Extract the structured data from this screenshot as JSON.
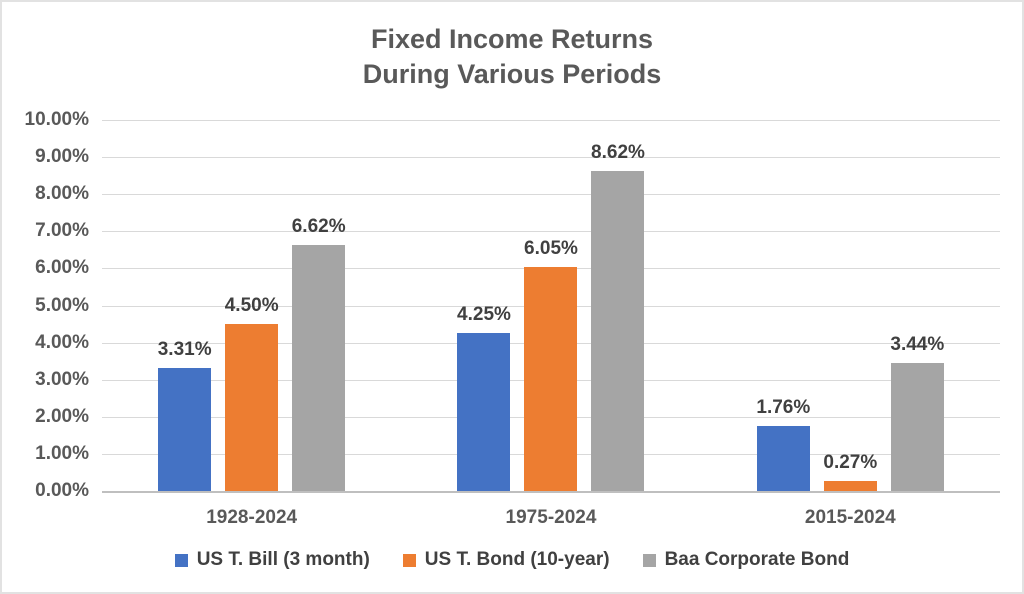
{
  "chart": {
    "title_line1": "Fixed Income Returns",
    "title_line2": "During Various Periods"
  },
  "chart_data": {
    "type": "bar",
    "title": "Fixed Income Returns During Various Periods",
    "categories": [
      "1928-2024",
      "1975-2024",
      "2015-2024"
    ],
    "series": [
      {
        "name": "US T. Bill (3 month)",
        "color": "#4472C4",
        "values": [
          3.31,
          4.25,
          1.76
        ],
        "labels": [
          "3.31%",
          "4.25%",
          "1.76%"
        ]
      },
      {
        "name": "US T. Bond (10-year)",
        "color": "#ED7D31",
        "values": [
          4.5,
          6.05,
          0.27
        ],
        "labels": [
          "4.50%",
          "6.05%",
          "0.27%"
        ]
      },
      {
        "name": "Baa Corporate Bond",
        "color": "#A5A5A5",
        "values": [
          6.62,
          8.62,
          3.44
        ],
        "labels": [
          "6.62%",
          "8.62%",
          "3.44%"
        ]
      }
    ],
    "xlabel": "",
    "ylabel": "",
    "ylim": [
      0,
      10
    ],
    "y_ticks": [
      "0.00%",
      "1.00%",
      "2.00%",
      "3.00%",
      "4.00%",
      "5.00%",
      "6.00%",
      "7.00%",
      "8.00%",
      "9.00%",
      "10.00%"
    ],
    "grid": true,
    "legend_position": "bottom",
    "colors": {
      "title_text": "#595959",
      "axis_text": "#595959",
      "data_label_text": "#404040",
      "gridline": "#d9d9d9",
      "baseline": "#bfbfbf",
      "background": "#ffffff"
    }
  }
}
